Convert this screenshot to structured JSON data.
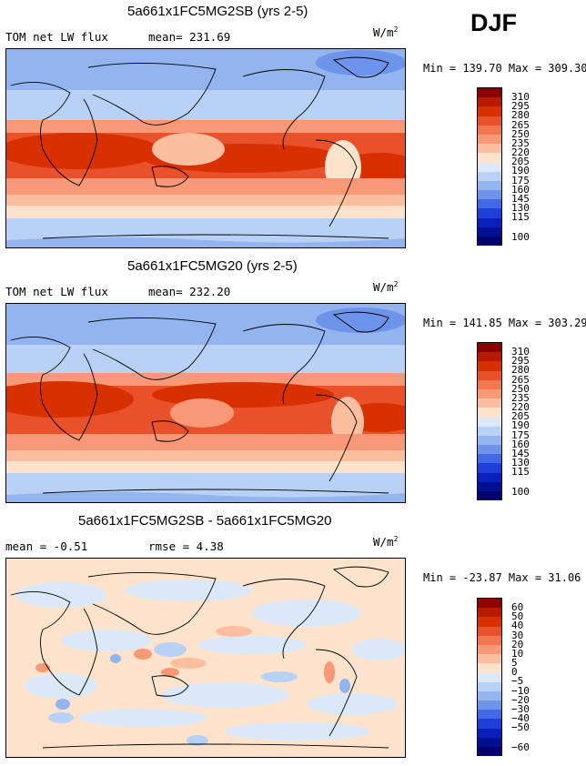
{
  "season": "DJF",
  "units": "W/m",
  "units_exp": "2",
  "panels": [
    {
      "title": "5a661x1FC5MG2SB (yrs 2-5)",
      "left_label": "TOM net LW flux",
      "stat_label": "mean= 231.69",
      "minmax": "Min = 139.70 Max = 309.30"
    },
    {
      "title": "5a661x1FC5MG20 (yrs 2-5)",
      "left_label": "TOM net LW flux",
      "stat_label": "mean= 232.20",
      "minmax": "Min = 141.85 Max = 303.29"
    },
    {
      "title": "5a661x1FC5MG2SB - 5a661x1FC5MG20",
      "left_label": "mean =  -0.51",
      "stat_label": "rmse =   4.38",
      "minmax": "Min = -23.87 Max =  31.06"
    }
  ],
  "colorbars": [
    {
      "labels": [
        "310",
        "295",
        "280",
        "265",
        "250",
        "235",
        "220",
        "205",
        "190",
        "175",
        "160",
        "145",
        "130",
        "115",
        "100"
      ],
      "colors": [
        "#8b0000",
        "#b81a00",
        "#d83000",
        "#e8512a",
        "#f27650",
        "#f79877",
        "#fbbfa0",
        "#fde3cc",
        "#dbe8f8",
        "#b9d1f4",
        "#93b4ef",
        "#6d93ea",
        "#4369e6",
        "#1d40d8",
        "#0a1ebb",
        "#001090",
        "#000070"
      ]
    },
    {
      "labels": [
        "60",
        "50",
        "40",
        "30",
        "20",
        "10",
        "5",
        "0",
        "−5",
        "−10",
        "−20",
        "−30",
        "−40",
        "−50",
        "−60"
      ],
      "colors": [
        "#8b0000",
        "#b81a00",
        "#d83000",
        "#e8512a",
        "#f27650",
        "#f79877",
        "#fbbfa0",
        "#fde3cc",
        "#dbe8f8",
        "#b9d1f4",
        "#93b4ef",
        "#6d93ea",
        "#4369e6",
        "#1d40d8",
        "#0a1ebb",
        "#001090",
        "#000070"
      ]
    }
  ]
}
